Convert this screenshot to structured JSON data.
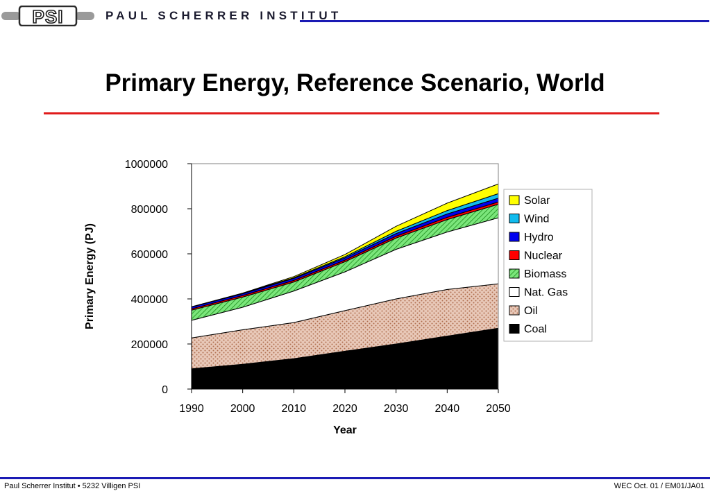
{
  "header": {
    "logo_text": "PSI",
    "org_name": "PAUL SCHERRER INSTITUT"
  },
  "slide": {
    "title": "Primary Energy, Reference Scenario, World"
  },
  "colors": {
    "header_line": "#1a1ab4",
    "title_rule": "#e01b1b"
  },
  "chart_data": {
    "type": "area",
    "stacked": true,
    "title": "",
    "xlabel": "Year",
    "ylabel": "Primary Energy (PJ)",
    "x": [
      1990,
      2000,
      2010,
      2020,
      2030,
      2040,
      2050
    ],
    "ylim": [
      0,
      1000000
    ],
    "yticks": [
      0,
      200000,
      400000,
      600000,
      800000,
      1000000
    ],
    "ytick_labels": [
      "0",
      "200000",
      "400000",
      "600000",
      "800000",
      "1000000"
    ],
    "xtick_labels": [
      "1990",
      "2000",
      "2010",
      "2020",
      "2030",
      "2040",
      "2050"
    ],
    "legend_position": "right",
    "series": [
      {
        "name": "Coal",
        "color": "#000000",
        "pattern": "solid",
        "values": [
          90000,
          110000,
          135000,
          168000,
          200000,
          235000,
          270000
        ]
      },
      {
        "name": "Oil",
        "color": "#e8c8b8",
        "pattern": "dots",
        "values": [
          137000,
          153000,
          160000,
          180000,
          200000,
          207000,
          197000
        ]
      },
      {
        "name": "Nat. Gas",
        "color": "#ffffff",
        "pattern": "solid",
        "values": [
          78000,
          100000,
          140000,
          172000,
          220000,
          255000,
          293000
        ]
      },
      {
        "name": "Biomass",
        "color": "#55dd55",
        "pattern": "hatch",
        "values": [
          45000,
          45000,
          40000,
          45000,
          50000,
          55000,
          60000
        ]
      },
      {
        "name": "Nuclear",
        "color": "#ff0000",
        "pattern": "solid",
        "values": [
          6000,
          7000,
          7000,
          7000,
          8000,
          10000,
          10000
        ]
      },
      {
        "name": "Hydro",
        "color": "#0000ee",
        "pattern": "solid",
        "values": [
          8000,
          8000,
          9000,
          10000,
          12000,
          15000,
          17000
        ]
      },
      {
        "name": "Wind",
        "color": "#11bbee",
        "pattern": "solid",
        "values": [
          1000,
          2000,
          3000,
          5000,
          10000,
          15000,
          20000
        ]
      },
      {
        "name": "Solar",
        "color": "#ffff00",
        "pattern": "solid",
        "values": [
          0,
          1000,
          5000,
          10000,
          22000,
          33000,
          43000
        ]
      }
    ]
  },
  "footer": {
    "left": "Paul Scherrer Institut • 5232 Villigen PSI",
    "right": "WEC Oct. 01 / EM01/JA01"
  }
}
